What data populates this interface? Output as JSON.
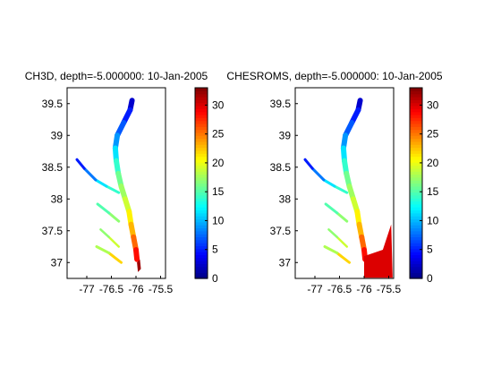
{
  "figure": {
    "background": "#ffffff"
  },
  "chart_data": [
    {
      "type": "heatmap",
      "title": "CH3D, depth=-5.000000: 10-Jan-2005",
      "xlabel": "",
      "ylabel": "",
      "xlim": [
        -77.4,
        -75.4
      ],
      "ylim": [
        36.75,
        39.75
      ],
      "xticks": [
        -77,
        -76.5,
        -76,
        -75.5
      ],
      "xticklabels": [
        "-77",
        "-76.5",
        "-76",
        "-75.5"
      ],
      "yticks": [
        37,
        37.5,
        38,
        38.5,
        39,
        39.5
      ],
      "yticklabels": [
        "37",
        "37.5",
        "38",
        "38.5",
        "39",
        "39.5"
      ],
      "grid": false,
      "colormap": "jet",
      "colorbar": {
        "clim": [
          0,
          33
        ],
        "ticks": [
          0,
          5,
          10,
          15,
          20,
          25,
          30
        ],
        "ticklabels": [
          "0",
          "5",
          "10",
          "15",
          "20",
          "25",
          "30"
        ]
      }
    },
    {
      "type": "heatmap",
      "title": "CHESROMS, depth=-5.000000: 10-Jan-2005",
      "xlabel": "",
      "ylabel": "",
      "xlim": [
        -77.4,
        -75.4
      ],
      "ylim": [
        36.75,
        39.75
      ],
      "xticks": [
        -77,
        -76.5,
        -76,
        -75.5
      ],
      "xticklabels": [
        "-77",
        "-76.5",
        "-76",
        "-75.5"
      ],
      "yticks": [
        37,
        37.5,
        38,
        38.5,
        39,
        39.5
      ],
      "yticklabels": [
        "37",
        "37.5",
        "38",
        "38.5",
        "39",
        "39.5"
      ],
      "grid": false,
      "colormap": "jet",
      "colorbar": {
        "clim": [
          0,
          33
        ],
        "ticks": [
          0,
          5,
          10,
          15,
          20,
          25,
          30
        ],
        "ticklabels": [
          "0",
          "5",
          "10",
          "15",
          "20",
          "25",
          "30"
        ]
      }
    }
  ]
}
